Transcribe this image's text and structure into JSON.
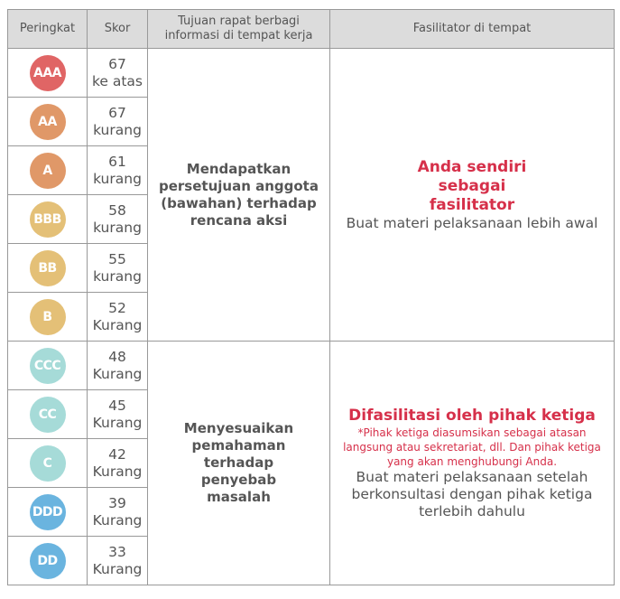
{
  "headers": [
    "Peringkat",
    "Skor",
    "Tujuan rapat berbagi informasi di tempat kerja",
    "Fasilitator di tempat"
  ],
  "rows": [
    {
      "rank": "AAA",
      "score": "67",
      "score_note": "ke atas",
      "color": "#e06565"
    },
    {
      "rank": "AA",
      "score": "67",
      "score_note": "kurang",
      "color": "#e09868"
    },
    {
      "rank": "A",
      "score": "61",
      "score_note": "kurang",
      "color": "#e09868"
    },
    {
      "rank": "BBB",
      "score": "58",
      "score_note": "kurang",
      "color": "#e4c077"
    },
    {
      "rank": "BB",
      "score": "55",
      "score_note": "kurang",
      "color": "#e4c077"
    },
    {
      "rank": "B",
      "score": "52",
      "score_note": "Kurang",
      "color": "#e4c077"
    },
    {
      "rank": "CCC",
      "score": "48",
      "score_note": "Kurang",
      "color": "#a6dbd8"
    },
    {
      "rank": "CC",
      "score": "45",
      "score_note": "Kurang",
      "color": "#a6dbd8"
    },
    {
      "rank": "C",
      "score": "42",
      "score_note": "Kurang",
      "color": "#a6dbd8"
    },
    {
      "rank": "DDD",
      "score": "39",
      "score_note": "Kurang",
      "color": "#6ab4df"
    },
    {
      "rank": "DD",
      "score": "33",
      "score_note": "Kurang",
      "color": "#6ab4df"
    }
  ],
  "group1": {
    "goal": "Mendapatkan persetujuan anggota (bawahan) terhadap rencana aksi",
    "facilitator_title": "Anda sendiri sebagai fasilitator",
    "facilitator_text": "Buat materi pelaksanaan lebih awal"
  },
  "group2": {
    "goal": "Menyesuaikan pemahaman terhadap penyebab masalah",
    "facilitator_title": "Difasilitasi oleh pihak ketiga",
    "facilitator_note": "*Pihak ketiga diasumsikan sebagai atasan langsung atau sekretariat, dll. Dan pihak ketiga yang akan menghubungi Anda.",
    "facilitator_text": "Buat materi pelaksanaan setelah berkonsultasi dengan pihak ketiga terlebih dahulu"
  }
}
